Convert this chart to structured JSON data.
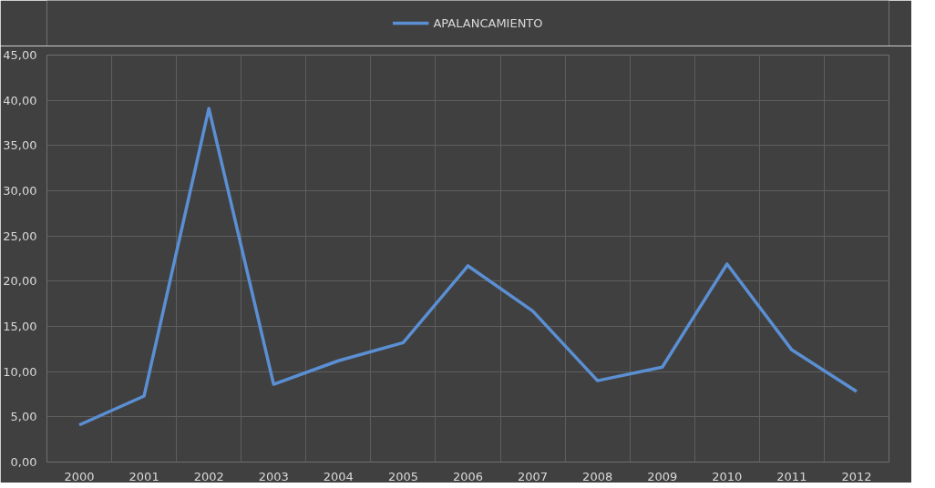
{
  "chart_data": {
    "type": "line",
    "categories": [
      "2000",
      "2001",
      "2002",
      "2003",
      "2004",
      "2005",
      "2006",
      "2007",
      "2008",
      "2009",
      "2010",
      "2011",
      "2012"
    ],
    "series": [
      {
        "name": "APALANCAMIENTO",
        "color": "#5b8fd4",
        "values": [
          4.1,
          7.3,
          39.1,
          8.6,
          11.2,
          13.2,
          21.7,
          16.7,
          9.0,
          10.5,
          21.9,
          12.4,
          7.8
        ]
      }
    ],
    "ylim": [
      0,
      45
    ],
    "yticks": [
      {
        "value": 0,
        "label": "0,00"
      },
      {
        "value": 5,
        "label": "5,00"
      },
      {
        "value": 10,
        "label": "10,00"
      },
      {
        "value": 15,
        "label": "15,00"
      },
      {
        "value": 20,
        "label": "20,00"
      },
      {
        "value": 25,
        "label": "25,00"
      },
      {
        "value": 30,
        "label": "30,00"
      },
      {
        "value": 35,
        "label": "35,00"
      },
      {
        "value": 40,
        "label": "40,00"
      },
      {
        "value": 45,
        "label": "45,00"
      }
    ],
    "grid": true,
    "legend": "top",
    "marker": "none",
    "line_style": "solid"
  }
}
